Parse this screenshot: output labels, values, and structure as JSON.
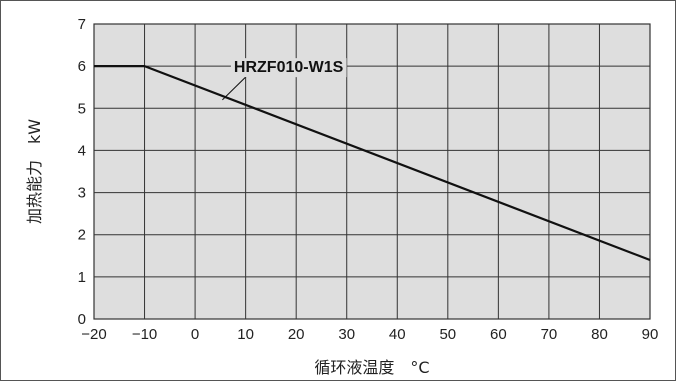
{
  "chart_data": {
    "type": "line",
    "xlabel": "循环液温度　°C",
    "ylabel": "加热能力　kW",
    "xlim": [
      -20,
      90
    ],
    "ylim": [
      0,
      7
    ],
    "x_ticks": [
      "−20",
      "−10",
      "0",
      "10",
      "20",
      "30",
      "40",
      "50",
      "60",
      "70",
      "80",
      "90"
    ],
    "y_ticks": [
      "0",
      "1",
      "2",
      "3",
      "4",
      "5",
      "6",
      "7"
    ],
    "grid": true,
    "series": [
      {
        "name": "HRZF010-W1S",
        "x": [
          -20,
          -10,
          90
        ],
        "y": [
          6.0,
          6.0,
          1.4
        ]
      }
    ],
    "colors": {
      "plot_background": "#dedede",
      "grid": "#333333",
      "line": "#111111"
    }
  }
}
